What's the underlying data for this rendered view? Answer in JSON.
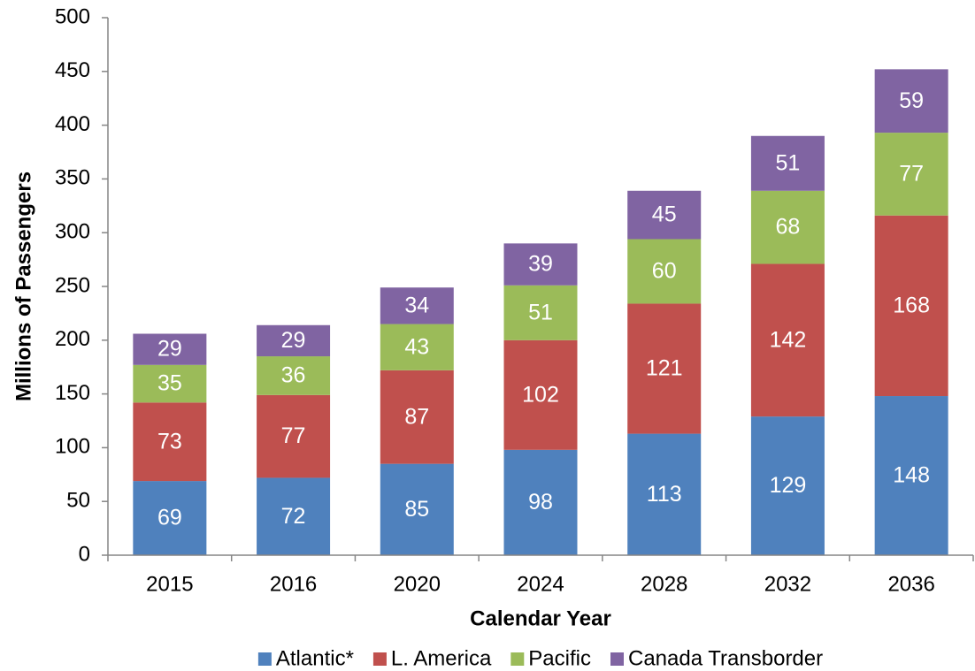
{
  "chart_data": {
    "type": "stacked_bar",
    "xlabel": "Calendar Year",
    "ylabel": "Millions of Passengers",
    "categories": [
      "2015",
      "2016",
      "2020",
      "2024",
      "2028",
      "2032",
      "2036"
    ],
    "series": [
      {
        "name": "Atlantic*",
        "color": "#4f81bd",
        "values": [
          69,
          72,
          85,
          98,
          113,
          129,
          148
        ]
      },
      {
        "name": "L. America",
        "color": "#c0504d",
        "values": [
          73,
          77,
          87,
          102,
          121,
          142,
          168
        ]
      },
      {
        "name": "Pacific",
        "color": "#9bbb59",
        "values": [
          35,
          36,
          43,
          51,
          60,
          68,
          77
        ]
      },
      {
        "name": "Canada Transborder",
        "color": "#8064a2",
        "values": [
          29,
          29,
          34,
          39,
          45,
          51,
          59
        ]
      }
    ],
    "ylim": [
      0,
      500
    ],
    "yticks": [
      0,
      50,
      100,
      150,
      200,
      250,
      300,
      350,
      400,
      450,
      500
    ],
    "grid": false,
    "legend": "bottom"
  }
}
